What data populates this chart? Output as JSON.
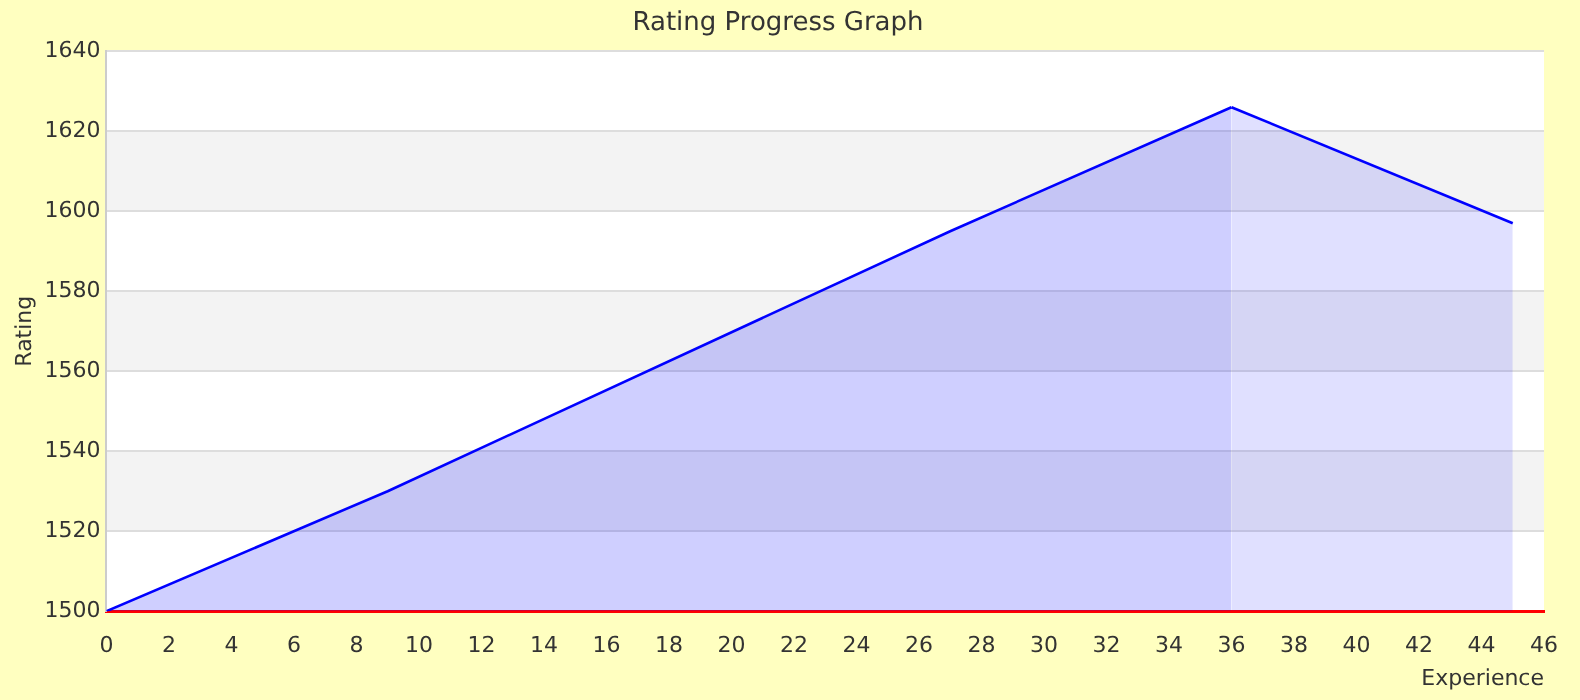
{
  "chart_data": {
    "type": "area",
    "title": "Rating Progress Graph",
    "xlabel": "Experience",
    "ylabel": "Rating",
    "series": [
      {
        "color": "#0000ff",
        "x": [
          0,
          9,
          27,
          36
        ],
        "values": [
          1500,
          1530,
          1595,
          1626
        ]
      },
      {
        "color": "#0000ff",
        "x": [
          36,
          45
        ],
        "values": [
          1626,
          1597
        ]
      }
    ],
    "xlim": [
      0,
      46
    ],
    "xticks": [
      0,
      2,
      4,
      6,
      8,
      10,
      12,
      14,
      16,
      18,
      20,
      22,
      24,
      26,
      28,
      30,
      32,
      34,
      36,
      38,
      40,
      42,
      44,
      46
    ],
    "ylim": [
      1500,
      1640
    ],
    "yticks": [
      1500,
      1520,
      1540,
      1560,
      1580,
      1600,
      1620,
      1640
    ],
    "grid": "y",
    "legend": false
  }
}
